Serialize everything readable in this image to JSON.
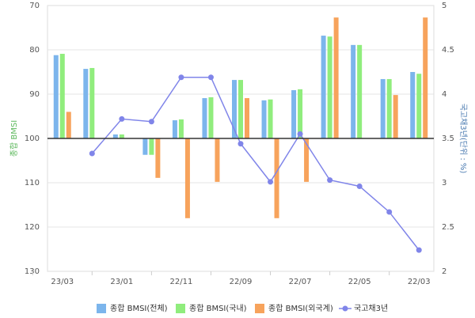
{
  "chart_data": {
    "type": "bar",
    "categories": [
      "23/03",
      null,
      "23/01",
      null,
      "22/11",
      null,
      "22/09",
      null,
      "22/07",
      null,
      "22/05",
      null,
      "22/03"
    ],
    "series": [
      {
        "name": "종합 BMSI(전체)",
        "color": "#7cb5ec",
        "values": [
          81.2,
          84.3,
          99.1,
          103.7,
          95.9,
          90.9,
          86.8,
          91.4,
          89.1,
          76.8,
          78.9,
          86.6,
          85
        ]
      },
      {
        "name": "종합 BMSI(국내)",
        "color": "#90ed7d",
        "values": [
          80.9,
          84.1,
          99.1,
          103.7,
          95.7,
          90.7,
          86.8,
          91.2,
          88.9,
          77,
          78.9,
          86.6,
          85.4
        ]
      },
      {
        "name": "종합 BMSI(외국계)",
        "color": "#f7a35c",
        "values": [
          94,
          null,
          null,
          108.9,
          118,
          109.8,
          90.9,
          118,
          109.8,
          72.7,
          null,
          90.2,
          72.7
        ]
      },
      {
        "name": "국고채3년",
        "color": "#8085e9",
        "type": "line",
        "axis": "y2",
        "values": [
          null,
          3.33,
          3.72,
          3.69,
          4.19,
          4.19,
          3.44,
          3.01,
          3.55,
          3.03,
          2.96,
          2.67,
          2.24
        ]
      }
    ],
    "ylabel": "종합 BMSI",
    "y2label": "국고채3년(단위 : %)",
    "ylim": [
      130,
      70
    ],
    "yticks": [
      70,
      80,
      90,
      100,
      110,
      120,
      130
    ],
    "y2lim": [
      2,
      5
    ],
    "y2ticks": [
      2,
      2.5,
      3,
      3.5,
      4,
      4.5,
      5
    ],
    "baseline": 100,
    "grid": true,
    "legend": "bottom"
  }
}
